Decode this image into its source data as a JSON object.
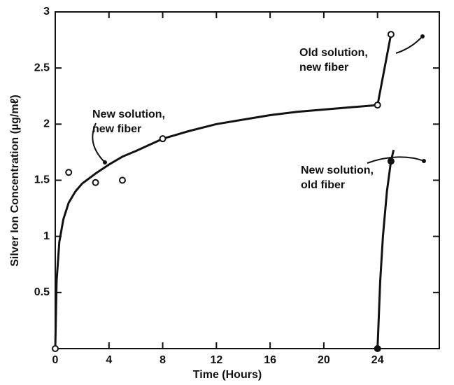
{
  "chart_data": {
    "type": "line",
    "xlabel": "Time (Hours)",
    "ylabel": "Silver Ion Concentration (µg/mℓ)",
    "xlim": [
      0,
      28.6
    ],
    "xticks": [
      0,
      4,
      8,
      12,
      16,
      20,
      24
    ],
    "ylim": [
      0,
      3
    ],
    "yticks": [
      0.5,
      1,
      1.5,
      2,
      2.5,
      3
    ],
    "color": "#111111",
    "series": [
      {
        "style": "line",
        "x": [
          0,
          0.1,
          0.3,
          0.6,
          1,
          1.5,
          2,
          3,
          4,
          5,
          6,
          8,
          10,
          12,
          14,
          16,
          18,
          20,
          22,
          24,
          25
        ],
        "values": [
          0,
          0.6,
          0.95,
          1.15,
          1.3,
          1.4,
          1.47,
          1.56,
          1.64,
          1.71,
          1.76,
          1.87,
          1.94,
          2.0,
          2.04,
          2.08,
          2.11,
          2.13,
          2.15,
          2.17,
          2.8
        ]
      },
      {
        "style": "line",
        "x": [
          24,
          24.2,
          24.4,
          24.7,
          25,
          25.2
        ],
        "values": [
          0,
          0.6,
          1.0,
          1.4,
          1.67,
          1.77
        ]
      },
      {
        "style": "open-circle",
        "x": [
          0,
          1,
          3,
          5,
          8,
          24,
          25
        ],
        "values": [
          0,
          1.57,
          1.48,
          1.5,
          1.87,
          2.17,
          2.8
        ]
      },
      {
        "style": "filled-circle",
        "x": [
          24,
          25
        ],
        "values": [
          0,
          1.67
        ]
      }
    ],
    "annotations": [
      {
        "lines": [
          "New solution,",
          "new fiber"
        ]
      },
      {
        "lines": [
          "Old solution,",
          "new fiber"
        ]
      },
      {
        "lines": [
          "New solution,",
          "old fiber"
        ]
      }
    ]
  }
}
